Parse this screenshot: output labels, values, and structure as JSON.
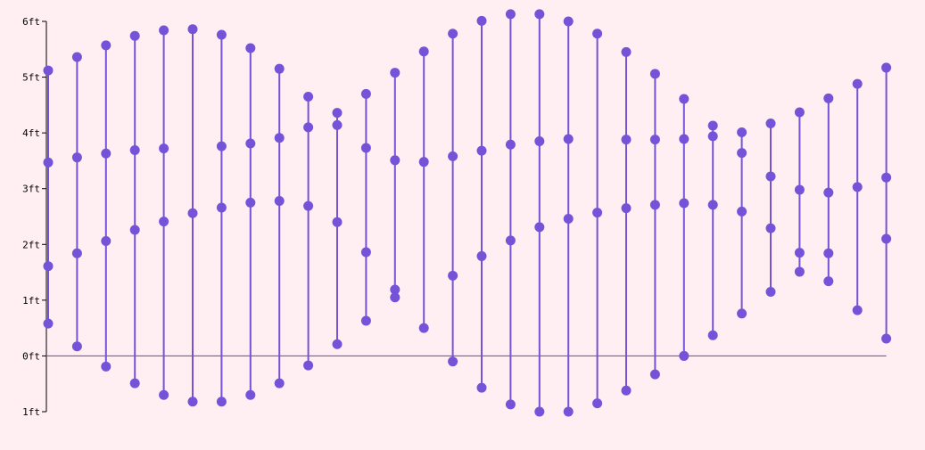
{
  "chart_data": {
    "type": "scatter",
    "title": "",
    "xlabel": "",
    "ylabel": "",
    "ylim": [
      -1,
      6
    ],
    "yticks": [
      {
        "value": 6,
        "label": "6ft"
      },
      {
        "value": 5,
        "label": "5ft"
      },
      {
        "value": 4,
        "label": "4ft"
      },
      {
        "value": 3,
        "label": "3ft"
      },
      {
        "value": 2,
        "label": "2ft"
      },
      {
        "value": 1,
        "label": "1ft"
      },
      {
        "value": 0,
        "label": "0ft"
      },
      {
        "value": -1,
        "label": "1ft"
      }
    ],
    "zero_line": true,
    "grid": false,
    "colors": {
      "point": "#7553d8",
      "line": "#7553d8",
      "background": "#ffeef2"
    },
    "days": [
      [
        5.12,
        3.47,
        1.61,
        0.58
      ],
      [
        5.36,
        3.56,
        1.84,
        0.17
      ],
      [
        5.57,
        3.63,
        2.06,
        -0.19
      ],
      [
        5.74,
        3.69,
        2.26,
        -0.49
      ],
      [
        5.84,
        3.72,
        2.41,
        -0.7
      ],
      [
        5.86,
        2.56,
        -0.82
      ],
      [
        5.76,
        3.76,
        2.66,
        -0.82
      ],
      [
        5.52,
        3.81,
        2.75,
        -0.7
      ],
      [
        5.15,
        3.91,
        2.78,
        -0.49
      ],
      [
        4.65,
        4.1,
        2.69,
        -0.17
      ],
      [
        4.36,
        4.14,
        2.4,
        0.21
      ],
      [
        4.7,
        3.73,
        1.86,
        0.63
      ],
      [
        5.08,
        3.51,
        1.19,
        1.05
      ],
      [
        5.46,
        3.48,
        0.5
      ],
      [
        5.78,
        3.58,
        1.44,
        -0.1
      ],
      [
        6.01,
        3.68,
        1.79,
        -0.57
      ],
      [
        6.13,
        3.79,
        2.07,
        -0.87
      ],
      [
        6.13,
        3.85,
        2.31,
        -1.0
      ],
      [
        6.0,
        3.89,
        2.46,
        -1.0
      ],
      [
        5.78,
        2.57,
        -0.85
      ],
      [
        5.45,
        3.88,
        2.65,
        -0.62
      ],
      [
        5.06,
        3.88,
        2.71,
        -0.33
      ],
      [
        4.61,
        3.89,
        2.74,
        0.0
      ],
      [
        4.13,
        3.94,
        2.71,
        0.37
      ],
      [
        4.01,
        3.64,
        2.59,
        0.76
      ],
      [
        4.17,
        3.22,
        2.29,
        1.15
      ],
      [
        4.37,
        2.98,
        1.85,
        1.51
      ],
      [
        4.62,
        2.93,
        1.84,
        1.34
      ],
      [
        4.88,
        3.03,
        0.82
      ],
      [
        5.17,
        3.2,
        2.1,
        0.31
      ]
    ]
  }
}
